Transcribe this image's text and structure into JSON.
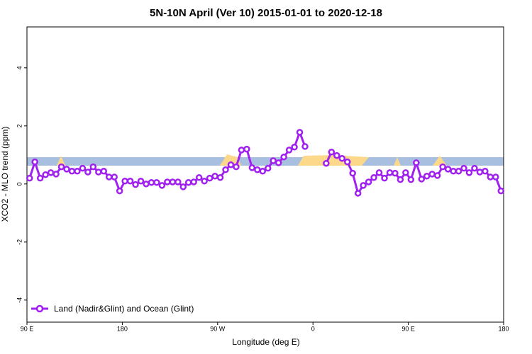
{
  "chart_data": {
    "type": "line",
    "title": "5N-10N April (Ver 10)   2015-01-01 to 2020-12-18",
    "x_label": "Longitude (deg E)",
    "y_label": "XCO2 - MLO trend (ppm)",
    "x": [
      92.5,
      97.5,
      102.5,
      107.5,
      112.5,
      117.5,
      122.5,
      127.5,
      132.5,
      137.5,
      142.5,
      147.5,
      152.5,
      157.5,
      162.5,
      167.5,
      172.5,
      177.5,
      182.5,
      187.5,
      192.5,
      197.5,
      202.5,
      207.5,
      212.5,
      217.5,
      222.5,
      227.5,
      232.5,
      237.5,
      242.5,
      247.5,
      252.5,
      257.5,
      262.5,
      267.5,
      272.5,
      277.5,
      282.5,
      287.5,
      292.5,
      297.5,
      302.5,
      307.5,
      312.5,
      317.5,
      322.5,
      327.5,
      332.5,
      337.5,
      342.5,
      347.5,
      352.5,
      357.5,
      362.5,
      367.5,
      372.5,
      377.5,
      382.5,
      387.5,
      392.5,
      397.5,
      402.5,
      407.5,
      412.5,
      417.5,
      422.5,
      427.5,
      432.5,
      437.5,
      442.5,
      447.5,
      452.5,
      457.5,
      462.5,
      467.5,
      472.5,
      477.5,
      482.5,
      487.5,
      492.5,
      497.5,
      502.5,
      507.5,
      512.5,
      517.5,
      522.5,
      527.5,
      532.5,
      537.5
    ],
    "series": [
      {
        "name": "Land (Nadir&Glint) and Ocean (Glint)",
        "color": "#a020f0",
        "values": [
          0.2,
          0.76,
          0.2,
          0.32,
          0.39,
          0.34,
          0.59,
          0.51,
          0.44,
          0.44,
          0.54,
          0.41,
          0.59,
          0.41,
          0.44,
          0.24,
          0.24,
          -0.24,
          0.1,
          0.1,
          -0.02,
          0.1,
          0.0,
          0.05,
          0.05,
          -0.05,
          0.07,
          0.07,
          0.07,
          -0.1,
          0.05,
          0.07,
          0.22,
          0.1,
          0.2,
          0.27,
          0.22,
          0.49,
          0.66,
          0.59,
          1.17,
          1.2,
          0.56,
          0.49,
          0.44,
          0.54,
          0.8,
          0.73,
          0.93,
          1.17,
          1.27,
          1.78,
          1.29,
          null,
          null,
          null,
          0.71,
          1.1,
          0.98,
          0.88,
          0.76,
          0.37,
          -0.32,
          -0.05,
          0.07,
          0.22,
          0.39,
          0.2,
          0.39,
          0.37,
          0.15,
          0.39,
          0.15,
          0.73,
          0.17,
          0.27,
          0.34,
          0.29,
          0.59,
          0.51,
          0.44,
          0.44,
          0.54,
          0.39,
          0.54,
          0.41,
          0.44,
          0.24,
          0.24,
          -0.24
        ]
      }
    ],
    "xlim": [
      90,
      540
    ],
    "xticks": [
      {
        "value": 90,
        "label": "90 E"
      },
      180,
      {
        "value": 270,
        "label": "90 W"
      },
      {
        "value": 360,
        "label": "0"
      },
      {
        "value": 450,
        "label": "90 E"
      },
      180
    ],
    "ylim": [
      -4.76,
      5.41
    ],
    "yticks": [
      -4,
      -2,
      0,
      2,
      4
    ],
    "legend": "bottom-left"
  }
}
